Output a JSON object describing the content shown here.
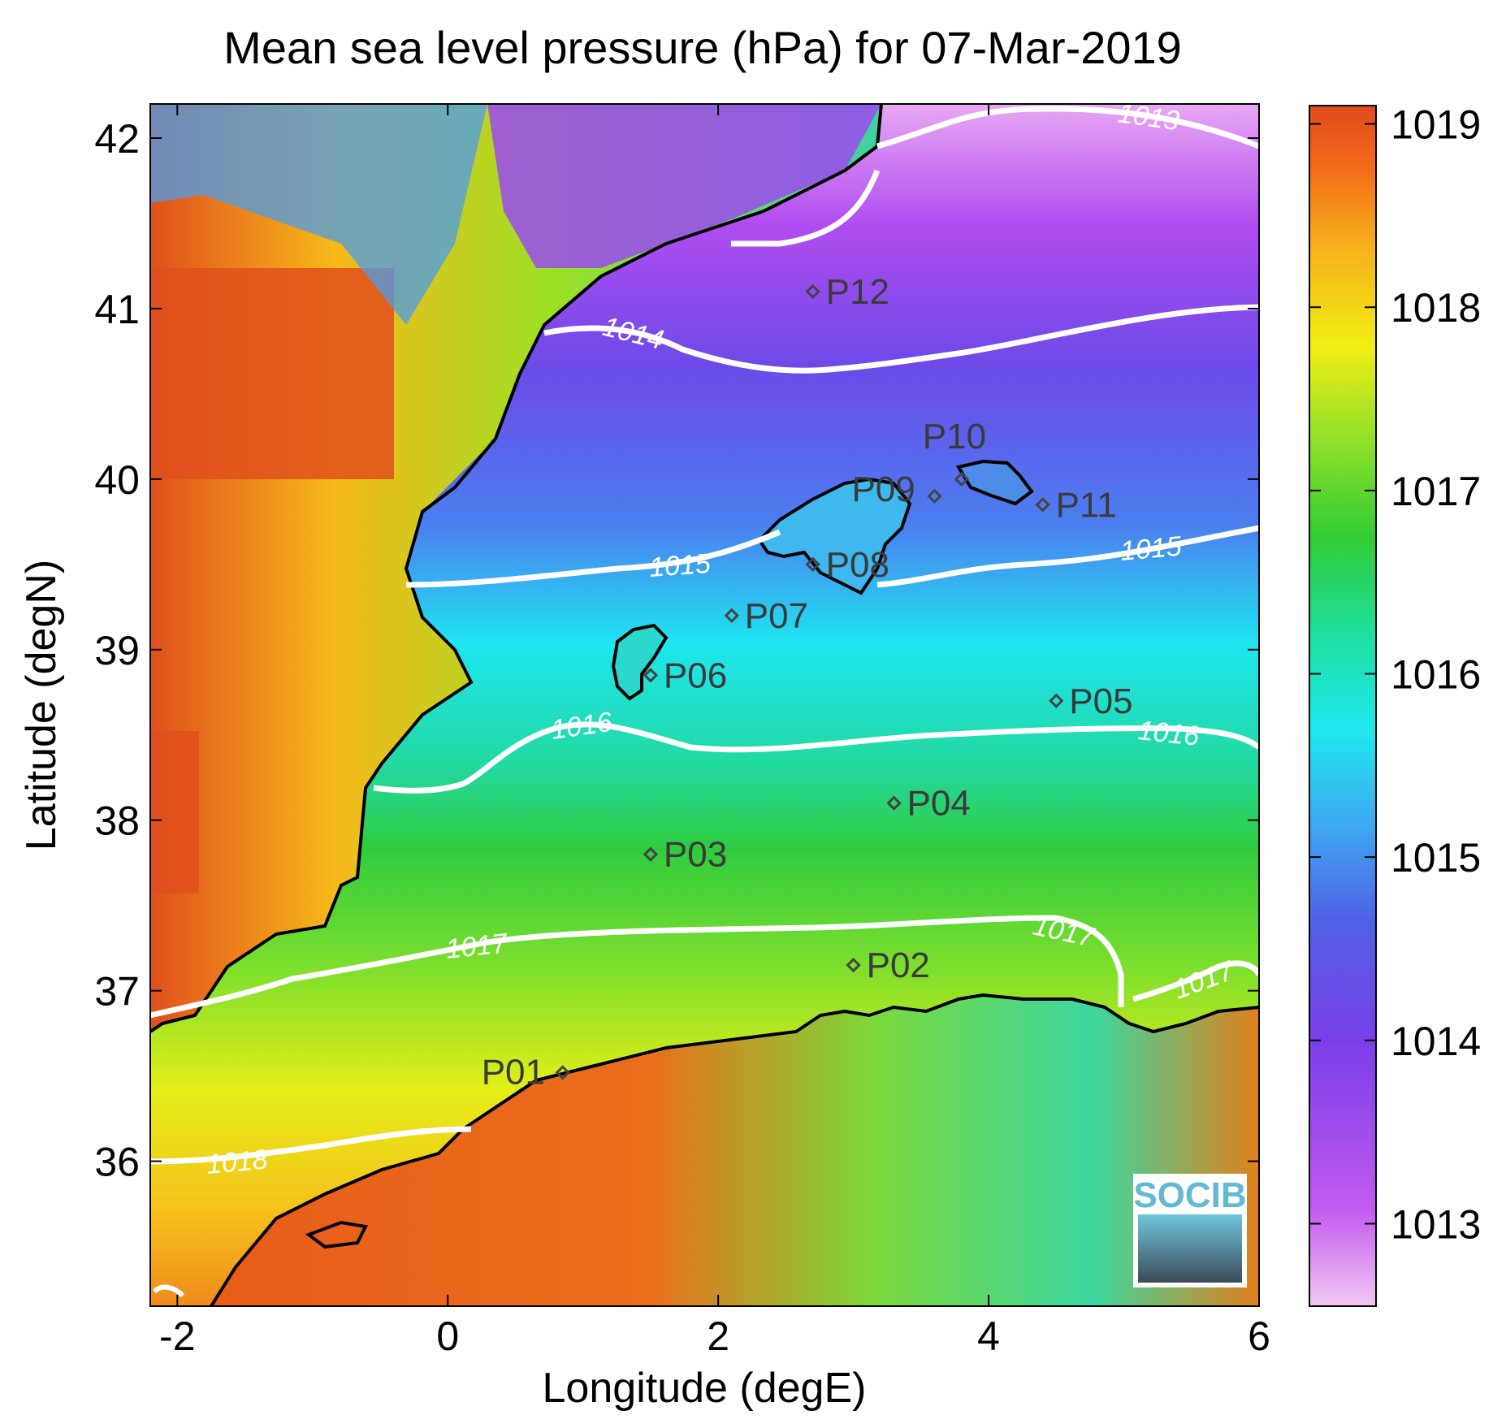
{
  "title": "Mean sea level pressure (hPa) for 07-Mar-2019",
  "map": {
    "x_axis": {
      "label": "Longitude (degE)",
      "range": [
        -2.2,
        6.0
      ],
      "ticks": [
        {
          "value": -2,
          "label": "-2"
        },
        {
          "value": 0,
          "label": "0"
        },
        {
          "value": 2,
          "label": "2"
        },
        {
          "value": 4,
          "label": "4"
        },
        {
          "value": 6,
          "label": "6"
        }
      ]
    },
    "y_axis": {
      "label": "Latitude (degN)",
      "range": [
        35.15,
        42.2
      ],
      "ticks": [
        {
          "value": 36,
          "label": "36"
        },
        {
          "value": 37,
          "label": "37"
        },
        {
          "value": 38,
          "label": "38"
        },
        {
          "value": 39,
          "label": "39"
        },
        {
          "value": 40,
          "label": "40"
        },
        {
          "value": 41,
          "label": "41"
        },
        {
          "value": 42,
          "label": "42"
        }
      ]
    },
    "points": [
      {
        "id": "P01",
        "lon": 0.85,
        "lat": 36.52
      },
      {
        "id": "P02",
        "lon": 3.0,
        "lat": 37.15
      },
      {
        "id": "P03",
        "lon": 1.5,
        "lat": 37.8
      },
      {
        "id": "P04",
        "lon": 3.3,
        "lat": 38.1
      },
      {
        "id": "P05",
        "lon": 4.5,
        "lat": 38.7
      },
      {
        "id": "P06",
        "lon": 1.5,
        "lat": 38.85
      },
      {
        "id": "P07",
        "lon": 2.1,
        "lat": 39.2
      },
      {
        "id": "P08",
        "lon": 2.7,
        "lat": 39.5
      },
      {
        "id": "P09",
        "lon": 3.6,
        "lat": 39.9
      },
      {
        "id": "P10",
        "lon": 3.8,
        "lat": 40.0
      },
      {
        "id": "P11",
        "lon": 4.4,
        "lat": 39.85
      },
      {
        "id": "P12",
        "lon": 2.7,
        "lat": 41.1
      }
    ],
    "contour_labels": [
      "1013",
      "1014",
      "1015",
      "1015",
      "1016",
      "1016",
      "1017",
      "1017",
      "1017",
      "1018"
    ]
  },
  "colorbar": {
    "ticks": [
      {
        "value": 1013,
        "label": "1013"
      },
      {
        "value": 1014,
        "label": "1014"
      },
      {
        "value": 1015,
        "label": "1015"
      },
      {
        "value": 1016,
        "label": "1016"
      },
      {
        "value": 1017,
        "label": "1017"
      },
      {
        "value": 1018,
        "label": "1018"
      },
      {
        "value": 1019,
        "label": "1019"
      }
    ]
  },
  "colors": {
    "high": "#e04a1c",
    "orange": "#f7a21a",
    "yellow": "#f2ee14",
    "green": "#3ecf34",
    "cyan": "#1fe8ee",
    "blue": "#4f66e8",
    "purple": "#8a3ef0",
    "low": "#f2c4f2",
    "contour": "#ffffff",
    "coast": "#000000"
  },
  "logo": {
    "text": "SOCIB"
  }
}
